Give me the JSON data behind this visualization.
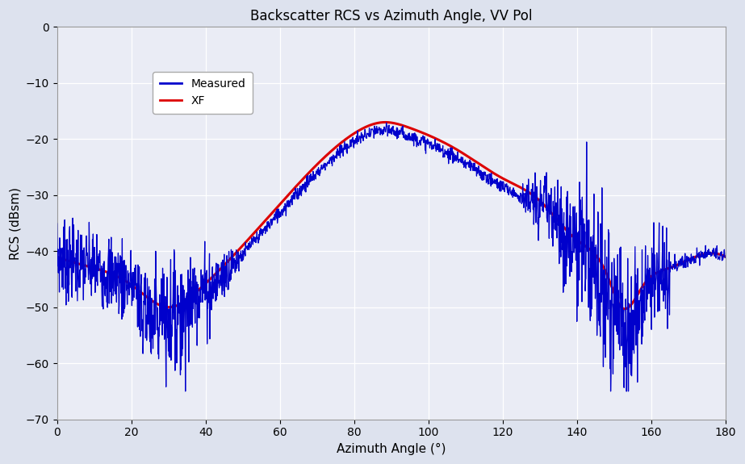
{
  "title": "Backscatter RCS vs Azimuth Angle, VV Pol",
  "xlabel": "Azimuth Angle (°)",
  "ylabel": "RCS (dBsm)",
  "xlim": [
    0,
    180
  ],
  "ylim": [
    -70,
    0
  ],
  "xticks": [
    0,
    20,
    40,
    60,
    80,
    100,
    120,
    140,
    160,
    180
  ],
  "yticks": [
    0,
    -10,
    -20,
    -30,
    -40,
    -50,
    -60,
    -70
  ],
  "measured_color": "#0000cc",
  "xf_color": "#dd0000",
  "fig_facecolor": "#dde2ee",
  "ax_facecolor": "#eaecf5",
  "grid_color": "#ffffff",
  "legend_labels": [
    "Measured",
    "XF"
  ],
  "title_fontsize": 12,
  "axis_fontsize": 11,
  "tick_fontsize": 10,
  "xf_key_x": [
    0,
    10,
    20,
    30,
    38,
    50,
    65,
    80,
    88,
    95,
    108,
    120,
    130,
    140,
    148,
    152,
    158,
    165,
    172,
    180
  ],
  "xf_key_y": [
    -41,
    -43,
    -46,
    -50,
    -47,
    -39,
    -28,
    -19,
    -17,
    -18,
    -22,
    -27,
    -31,
    -38,
    -44,
    -50,
    -46,
    -43,
    -41,
    -41
  ]
}
